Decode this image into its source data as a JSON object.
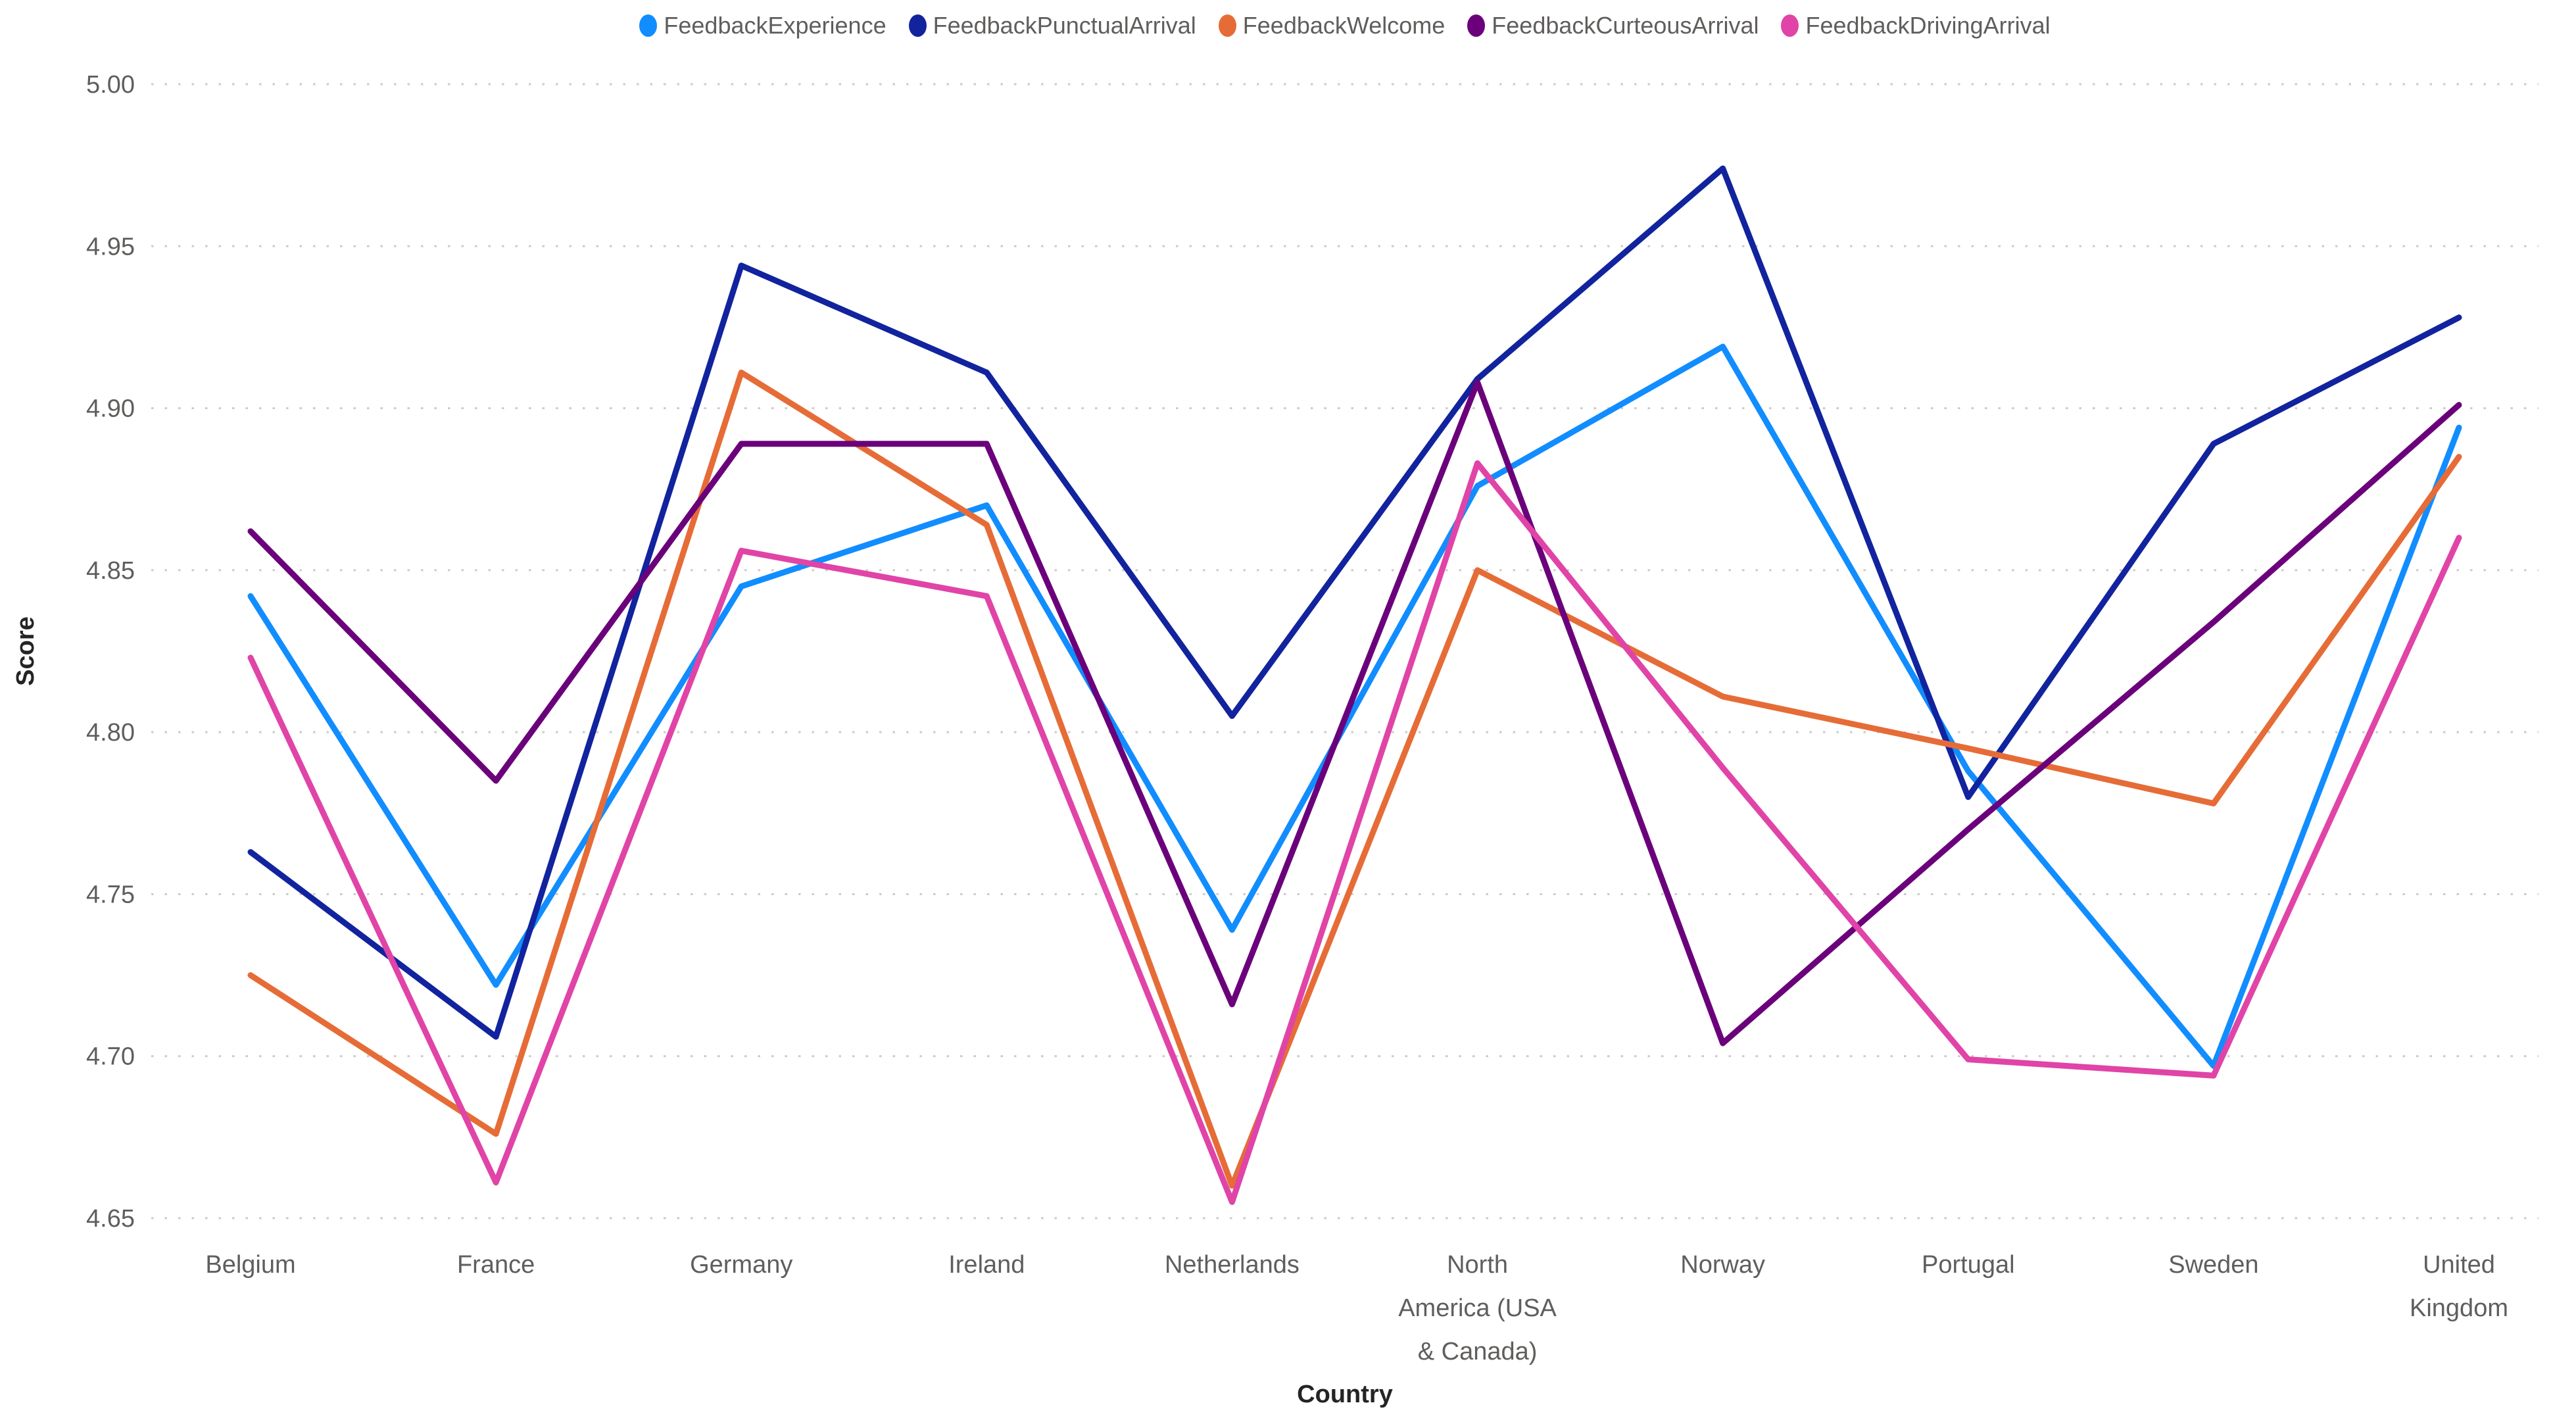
{
  "y_axis": {
    "title": "Score",
    "tick_labels": [
      "5.00",
      "4.95",
      "4.90",
      "4.85",
      "4.80",
      "4.75",
      "4.70",
      "4.65"
    ]
  },
  "x_axis": {
    "title": "Country"
  },
  "colors": {
    "axis_label_gray": "#605E5C",
    "axis_title_dark": "#252423",
    "gridline_gray": "#CDCBC9",
    "background": "#FFFFFF"
  },
  "chart_data": {
    "type": "line",
    "title": "",
    "xlabel": "Country",
    "ylabel": "Score",
    "ylim": [
      4.65,
      5.0
    ],
    "ytick_values": [
      5.0,
      4.95,
      4.9,
      4.85,
      4.8,
      4.75,
      4.7,
      4.65
    ],
    "grid": "horizontal-dotted",
    "legend_position": "top-center",
    "categories": [
      "Belgium",
      "France",
      "Germany",
      "Ireland",
      "Netherlands",
      "North America (USA & Canada)",
      "Norway",
      "Portugal",
      "Sweden",
      "United Kingdom"
    ],
    "category_label_lines": [
      [
        "Belgium"
      ],
      [
        "France"
      ],
      [
        "Germany"
      ],
      [
        "Ireland"
      ],
      [
        "Netherlands"
      ],
      [
        "North",
        "America (USA",
        "& Canada)"
      ],
      [
        "Norway"
      ],
      [
        "Portugal"
      ],
      [
        "Sweden"
      ],
      [
        "United",
        "Kingdom"
      ]
    ],
    "series": [
      {
        "name": "FeedbackExperience",
        "color": "#118DFF",
        "values": [
          4.842,
          4.722,
          4.845,
          4.87,
          4.739,
          4.876,
          4.919,
          4.788,
          4.697,
          4.894
        ]
      },
      {
        "name": "FeedbackPunctualArrival",
        "color": "#12239E",
        "values": [
          4.763,
          4.706,
          4.944,
          4.911,
          4.805,
          4.909,
          4.974,
          4.78,
          4.889,
          4.928
        ]
      },
      {
        "name": "FeedbackWelcome",
        "color": "#E66C37",
        "values": [
          4.725,
          4.676,
          4.911,
          4.864,
          4.66,
          4.85,
          4.811,
          4.795,
          4.778,
          4.885
        ]
      },
      {
        "name": "FeedbackCurteousArrival",
        "color": "#6B007B",
        "values": [
          4.862,
          4.785,
          4.889,
          4.889,
          4.716,
          4.908,
          4.704,
          4.77,
          4.834,
          4.901
        ]
      },
      {
        "name": "FeedbackDrivingArrival",
        "color": "#E044A7",
        "values": [
          4.823,
          4.661,
          4.856,
          4.842,
          4.655,
          4.883,
          4.789,
          4.699,
          4.694,
          4.86
        ]
      }
    ]
  }
}
